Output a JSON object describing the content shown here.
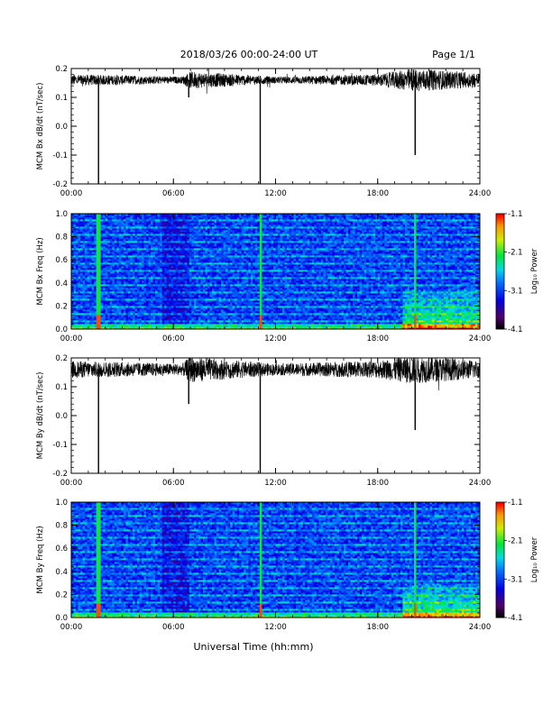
{
  "header": {
    "title": "2018/03/26  00:00-24:00 UT",
    "page": "Page 1/1"
  },
  "chart_data": [
    {
      "type": "line",
      "ylabel": "MCM Bx dB/dt (nT/sec)",
      "xlim": [
        0,
        24
      ],
      "ylim": [
        -0.2,
        0.2
      ],
      "xticks": [
        "00:00",
        "06:00",
        "12:00",
        "18:00",
        "24:00"
      ],
      "yticks": [
        "-0.2",
        "-0.1",
        "0.0",
        "0.1",
        "0.2"
      ],
      "baseline": 0.16,
      "noise": [
        {
          "t": 0.0,
          "amp": 0.02
        },
        {
          "t": 6.5,
          "amp": 0.012
        },
        {
          "t": 7.0,
          "amp": 0.03
        },
        {
          "t": 12.0,
          "amp": 0.012
        },
        {
          "t": 18.0,
          "amp": 0.02
        },
        {
          "t": 20.0,
          "amp": 0.04
        },
        {
          "t": 24.0,
          "amp": 0.025
        }
      ],
      "spikes": [
        {
          "t": 1.6,
          "y": -0.2
        },
        {
          "t": 6.9,
          "y": 0.1
        },
        {
          "t": 11.1,
          "y": -0.2
        },
        {
          "t": 20.2,
          "y": -0.1
        }
      ]
    },
    {
      "type": "heatmap",
      "ylabel": "MCM Bx Freq (Hz)",
      "xlim": [
        0,
        24
      ],
      "ylim": [
        0,
        1.0
      ],
      "xticks": [
        "00:00",
        "06:00",
        "12:00",
        "18:00",
        "24:00"
      ],
      "yticks": [
        "0.0",
        "0.2",
        "0.4",
        "0.6",
        "0.8",
        "1.0"
      ],
      "colorbar": {
        "label": "Log₁₀ Power",
        "range": [
          -4.1,
          -1.1
        ],
        "ticks": [
          "-1.1",
          "-2.1",
          "-3.1",
          "-4.1"
        ]
      },
      "events": [
        1.6,
        11.1,
        20.2
      ],
      "active_region": {
        "t_start": 19.5,
        "t_end": 24.0,
        "f_max": 0.35
      },
      "harmonics_spacing_hz": 0.0625
    },
    {
      "type": "line",
      "ylabel": "MCM By dB/dt (nT/sec)",
      "xlim": [
        0,
        24
      ],
      "ylim": [
        -0.2,
        0.2
      ],
      "xticks": [
        "00:00",
        "06:00",
        "12:00",
        "18:00",
        "24:00"
      ],
      "yticks": [
        "-0.2",
        "-0.1",
        "0.0",
        "0.1",
        "0.2"
      ],
      "baseline": 0.16,
      "noise": [
        {
          "t": 0.0,
          "amp": 0.03
        },
        {
          "t": 6.5,
          "amp": 0.02
        },
        {
          "t": 7.0,
          "amp": 0.045
        },
        {
          "t": 12.0,
          "amp": 0.02
        },
        {
          "t": 18.0,
          "amp": 0.03
        },
        {
          "t": 20.0,
          "amp": 0.05
        },
        {
          "t": 24.0,
          "amp": 0.03
        }
      ],
      "spikes": [
        {
          "t": 1.6,
          "y": -0.2
        },
        {
          "t": 6.9,
          "y": 0.04
        },
        {
          "t": 11.1,
          "y": -0.2
        },
        {
          "t": 20.2,
          "y": -0.05
        }
      ]
    },
    {
      "type": "heatmap",
      "ylabel": "MCM By Freq (Hz)",
      "xlim": [
        0,
        24
      ],
      "ylim": [
        0,
        1.0
      ],
      "xticks": [
        "00:00",
        "06:00",
        "12:00",
        "18:00",
        "24:00"
      ],
      "yticks": [
        "0.0",
        "0.2",
        "0.4",
        "0.6",
        "0.8",
        "1.0"
      ],
      "colorbar": {
        "label": "Log₁₀ Power",
        "range": [
          -4.1,
          -1.1
        ],
        "ticks": [
          "-1.1",
          "-2.1",
          "-3.1",
          "-4.1"
        ]
      },
      "events": [
        1.6,
        11.1,
        20.2
      ],
      "active_region": {
        "t_start": 19.5,
        "t_end": 24.0,
        "f_max": 0.3
      },
      "harmonics_spacing_hz": 0.0625
    }
  ],
  "xlabel": "Universal Time (hh:mm)"
}
